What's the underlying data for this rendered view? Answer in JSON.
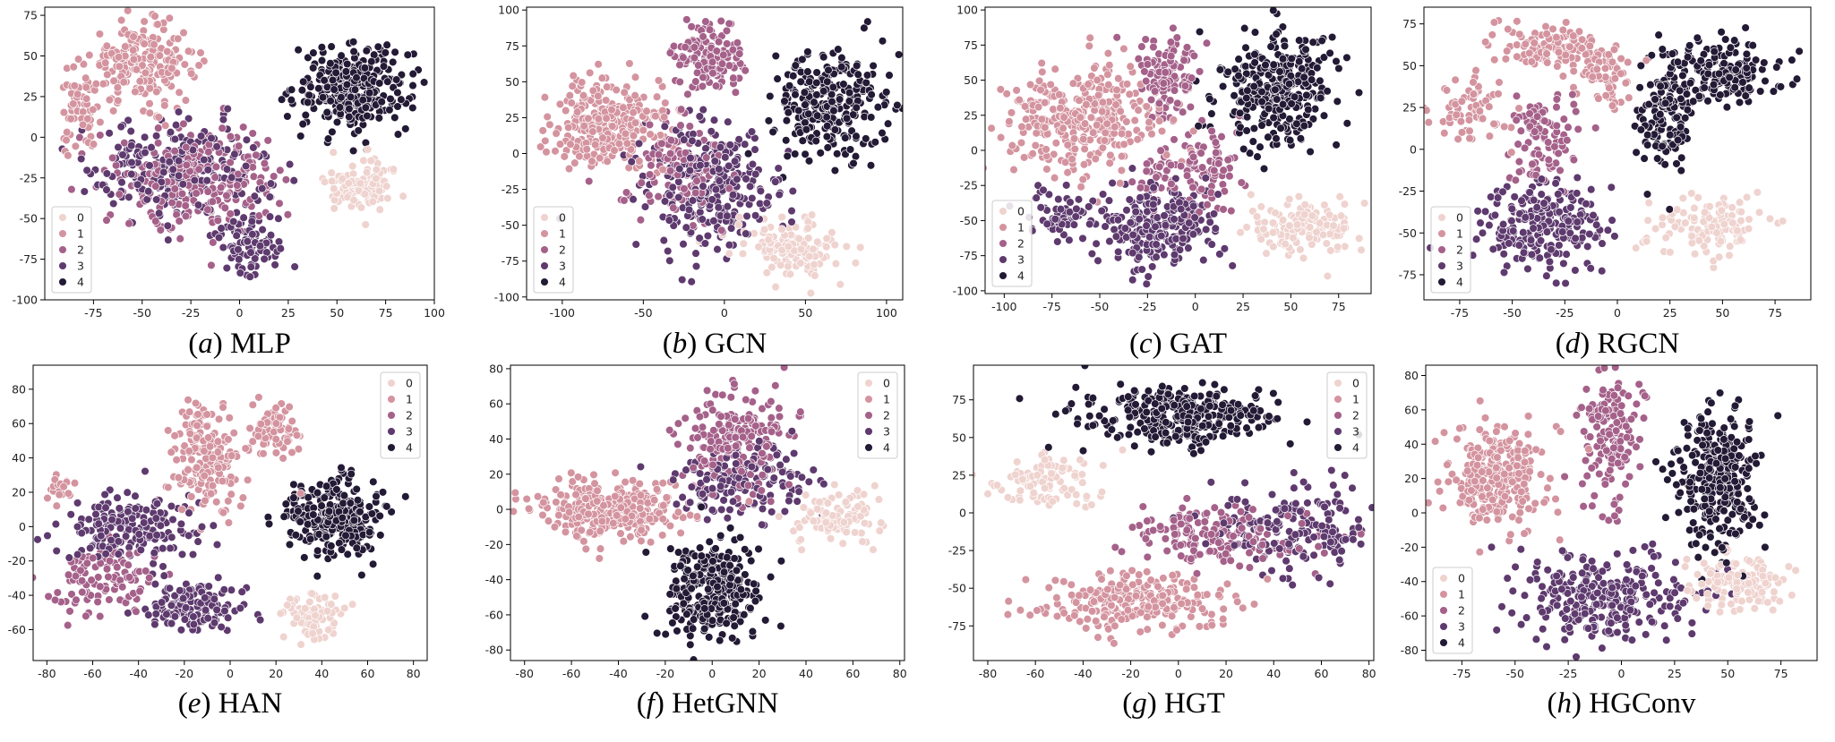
{
  "figure": {
    "legend_levels": [
      "0",
      "1",
      "2",
      "3",
      "4"
    ],
    "palette": [
      "#efd3cf",
      "#d4949f",
      "#a5618a",
      "#5e3a6e",
      "#231a35"
    ],
    "marker_edge": "#ffffff"
  },
  "chart_data": [
    {
      "id": "mlp",
      "type": "scatter",
      "caption_letter": "a",
      "caption_name": "MLP",
      "xlim": [
        -100,
        100
      ],
      "ylim": [
        -100,
        80
      ],
      "xticks": [
        -75,
        -50,
        -25,
        0,
        25,
        50,
        75,
        100
      ],
      "yticks": [
        -100,
        -75,
        -50,
        -25,
        0,
        25,
        50,
        75
      ],
      "legend_position": "lower-left",
      "clusters": [
        {
          "label": "1",
          "x": -50,
          "y": 45,
          "sx": 17,
          "sy": 15,
          "n": 230
        },
        {
          "label": "1",
          "x": -82,
          "y": 15,
          "sx": 6,
          "sy": 16,
          "n": 60
        },
        {
          "label": "4",
          "x": 58,
          "y": 30,
          "sx": 18,
          "sy": 16,
          "n": 320
        },
        {
          "label": "2",
          "x": -20,
          "y": -25,
          "sx": 26,
          "sy": 20,
          "n": 260
        },
        {
          "label": "3",
          "x": -30,
          "y": -20,
          "sx": 28,
          "sy": 18,
          "n": 240
        },
        {
          "label": "3",
          "x": 5,
          "y": -65,
          "sx": 12,
          "sy": 12,
          "n": 90
        },
        {
          "label": "0",
          "x": 62,
          "y": -28,
          "sx": 12,
          "sy": 10,
          "n": 110
        }
      ]
    },
    {
      "id": "gcn",
      "type": "scatter",
      "caption_letter": "b",
      "caption_name": "GCN",
      "xlim": [
        -122,
        110
      ],
      "ylim": [
        -102,
        102
      ],
      "xticks": [
        -100,
        -50,
        0,
        50,
        100
      ],
      "yticks": [
        -100,
        -75,
        -50,
        -25,
        0,
        25,
        50,
        75,
        100
      ],
      "legend_position": "lower-left",
      "clusters": [
        {
          "label": "1",
          "x": -70,
          "y": 20,
          "sx": 22,
          "sy": 20,
          "n": 280
        },
        {
          "label": "2",
          "x": -10,
          "y": 65,
          "sx": 13,
          "sy": 16,
          "n": 130
        },
        {
          "label": "4",
          "x": 65,
          "y": 35,
          "sx": 22,
          "sy": 22,
          "n": 270
        },
        {
          "label": "3",
          "x": -10,
          "y": -25,
          "sx": 26,
          "sy": 28,
          "n": 270
        },
        {
          "label": "2",
          "x": -25,
          "y": -15,
          "sx": 22,
          "sy": 22,
          "n": 120
        },
        {
          "label": "0",
          "x": 42,
          "y": -65,
          "sx": 18,
          "sy": 12,
          "n": 140
        }
      ]
    },
    {
      "id": "gat",
      "type": "scatter",
      "caption_letter": "c",
      "caption_name": "GAT",
      "xlim": [
        -110,
        92
      ],
      "ylim": [
        -102,
        102
      ],
      "xticks": [
        -100,
        -75,
        -50,
        -25,
        0,
        25,
        50,
        75
      ],
      "yticks": [
        -100,
        -75,
        -50,
        -25,
        0,
        25,
        50,
        75,
        100
      ],
      "legend_position": "lower-left",
      "clusters": [
        {
          "label": "1",
          "x": -60,
          "y": 20,
          "sx": 25,
          "sy": 25,
          "n": 330
        },
        {
          "label": "2",
          "x": -15,
          "y": 55,
          "sx": 10,
          "sy": 18,
          "n": 120
        },
        {
          "label": "4",
          "x": 42,
          "y": 45,
          "sx": 20,
          "sy": 25,
          "n": 330
        },
        {
          "label": "3",
          "x": -20,
          "y": -55,
          "sx": 22,
          "sy": 18,
          "n": 240
        },
        {
          "label": "3",
          "x": -70,
          "y": -45,
          "sx": 10,
          "sy": 12,
          "n": 60
        },
        {
          "label": "2",
          "x": 0,
          "y": -15,
          "sx": 18,
          "sy": 20,
          "n": 120
        },
        {
          "label": "0",
          "x": 55,
          "y": -55,
          "sx": 18,
          "sy": 13,
          "n": 140
        }
      ]
    },
    {
      "id": "rgcn",
      "type": "scatter",
      "caption_letter": "d",
      "caption_name": "RGCN",
      "xlim": [
        -92,
        92
      ],
      "ylim": [
        -90,
        85
      ],
      "xticks": [
        -75,
        -50,
        -25,
        0,
        25,
        50,
        75
      ],
      "yticks": [
        -75,
        -50,
        -25,
        0,
        25,
        50,
        75
      ],
      "legend_position": "lower-left",
      "clusters": [
        {
          "label": "1",
          "x": -30,
          "y": 60,
          "sx": 18,
          "sy": 8,
          "n": 140
        },
        {
          "label": "1",
          "x": -70,
          "y": 25,
          "sx": 10,
          "sy": 14,
          "n": 70
        },
        {
          "label": "1",
          "x": -5,
          "y": 45,
          "sx": 8,
          "sy": 12,
          "n": 60
        },
        {
          "label": "4",
          "x": 50,
          "y": 45,
          "sx": 18,
          "sy": 12,
          "n": 170
        },
        {
          "label": "4",
          "x": 22,
          "y": 20,
          "sx": 8,
          "sy": 22,
          "n": 130
        },
        {
          "label": "2",
          "x": -35,
          "y": 5,
          "sx": 10,
          "sy": 18,
          "n": 100
        },
        {
          "label": "3",
          "x": -35,
          "y": -45,
          "sx": 18,
          "sy": 18,
          "n": 240
        },
        {
          "label": "0",
          "x": 45,
          "y": -45,
          "sx": 20,
          "sy": 10,
          "n": 130
        }
      ]
    },
    {
      "id": "han",
      "type": "scatter",
      "caption_letter": "e",
      "caption_name": "HAN",
      "xlim": [
        -86,
        86
      ],
      "ylim": [
        -78,
        94
      ],
      "xticks": [
        -80,
        -60,
        -40,
        -20,
        0,
        20,
        40,
        60,
        80
      ],
      "yticks": [
        -60,
        -40,
        -20,
        0,
        20,
        40,
        60,
        80
      ],
      "legend_position": "upper-right",
      "clusters": [
        {
          "label": "1",
          "x": -10,
          "y": 40,
          "sx": 10,
          "sy": 20,
          "n": 180
        },
        {
          "label": "1",
          "x": 20,
          "y": 55,
          "sx": 7,
          "sy": 10,
          "n": 70
        },
        {
          "label": "1",
          "x": -75,
          "y": 22,
          "sx": 4,
          "sy": 6,
          "n": 20
        },
        {
          "label": "4",
          "x": 45,
          "y": 5,
          "sx": 15,
          "sy": 15,
          "n": 260
        },
        {
          "label": "3",
          "x": -45,
          "y": 0,
          "sx": 20,
          "sy": 12,
          "n": 180
        },
        {
          "label": "2",
          "x": -55,
          "y": -30,
          "sx": 15,
          "sy": 12,
          "n": 110
        },
        {
          "label": "3",
          "x": -15,
          "y": -45,
          "sx": 12,
          "sy": 10,
          "n": 150
        },
        {
          "label": "0",
          "x": 35,
          "y": -52,
          "sx": 8,
          "sy": 8,
          "n": 90
        }
      ]
    },
    {
      "id": "hetgnn",
      "type": "scatter",
      "caption_letter": "f",
      "caption_name": "HetGNN",
      "xlim": [
        -86,
        82
      ],
      "ylim": [
        -86,
        82
      ],
      "xticks": [
        -80,
        -60,
        -40,
        -20,
        0,
        20,
        40,
        60,
        80
      ],
      "yticks": [
        -80,
        -60,
        -40,
        -20,
        0,
        20,
        40,
        60,
        80
      ],
      "legend_position": "upper-right",
      "clusters": [
        {
          "label": "1",
          "x": -45,
          "y": 0,
          "sx": 20,
          "sy": 10,
          "n": 300
        },
        {
          "label": "2",
          "x": 10,
          "y": 40,
          "sx": 15,
          "sy": 18,
          "n": 200
        },
        {
          "label": "3",
          "x": 15,
          "y": 15,
          "sx": 18,
          "sy": 12,
          "n": 150
        },
        {
          "label": "4",
          "x": 0,
          "y": -45,
          "sx": 12,
          "sy": 18,
          "n": 300
        },
        {
          "label": "0",
          "x": 55,
          "y": -5,
          "sx": 12,
          "sy": 10,
          "n": 100
        }
      ]
    },
    {
      "id": "hgt",
      "type": "scatter",
      "caption_letter": "g",
      "caption_name": "HGT",
      "xlim": [
        -86,
        82
      ],
      "ylim": [
        -98,
        98
      ],
      "xticks": [
        -80,
        -60,
        -40,
        -20,
        0,
        20,
        40,
        60,
        80
      ],
      "yticks": [
        -75,
        -50,
        -25,
        0,
        25,
        50,
        75
      ],
      "legend_position": "upper-right",
      "clusters": [
        {
          "label": "4",
          "x": 0,
          "y": 65,
          "sx": 25,
          "sy": 12,
          "n": 320
        },
        {
          "label": "0",
          "x": -55,
          "y": 20,
          "sx": 15,
          "sy": 10,
          "n": 100
        },
        {
          "label": "1",
          "x": -20,
          "y": -60,
          "sx": 25,
          "sy": 12,
          "n": 250
        },
        {
          "label": "2",
          "x": 20,
          "y": -15,
          "sx": 25,
          "sy": 12,
          "n": 160
        },
        {
          "label": "3",
          "x": 50,
          "y": -10,
          "sx": 20,
          "sy": 20,
          "n": 180
        }
      ]
    },
    {
      "id": "hgconv",
      "type": "scatter",
      "caption_letter": "h",
      "caption_name": "HGConv",
      "xlim": [
        -92,
        92
      ],
      "ylim": [
        -86,
        86
      ],
      "xticks": [
        -75,
        -50,
        -25,
        0,
        25,
        50,
        75
      ],
      "yticks": [
        -80,
        -60,
        -40,
        -20,
        0,
        20,
        40,
        60,
        80
      ],
      "legend_position": "lower-left",
      "clusters": [
        {
          "label": "1",
          "x": -60,
          "y": 20,
          "sx": 15,
          "sy": 18,
          "n": 300
        },
        {
          "label": "2",
          "x": -5,
          "y": 40,
          "sx": 8,
          "sy": 25,
          "n": 150
        },
        {
          "label": "4",
          "x": 45,
          "y": 20,
          "sx": 12,
          "sy": 25,
          "n": 300
        },
        {
          "label": "3",
          "x": -10,
          "y": -50,
          "sx": 25,
          "sy": 15,
          "n": 280
        },
        {
          "label": "0",
          "x": 55,
          "y": -40,
          "sx": 15,
          "sy": 10,
          "n": 120
        }
      ]
    }
  ]
}
